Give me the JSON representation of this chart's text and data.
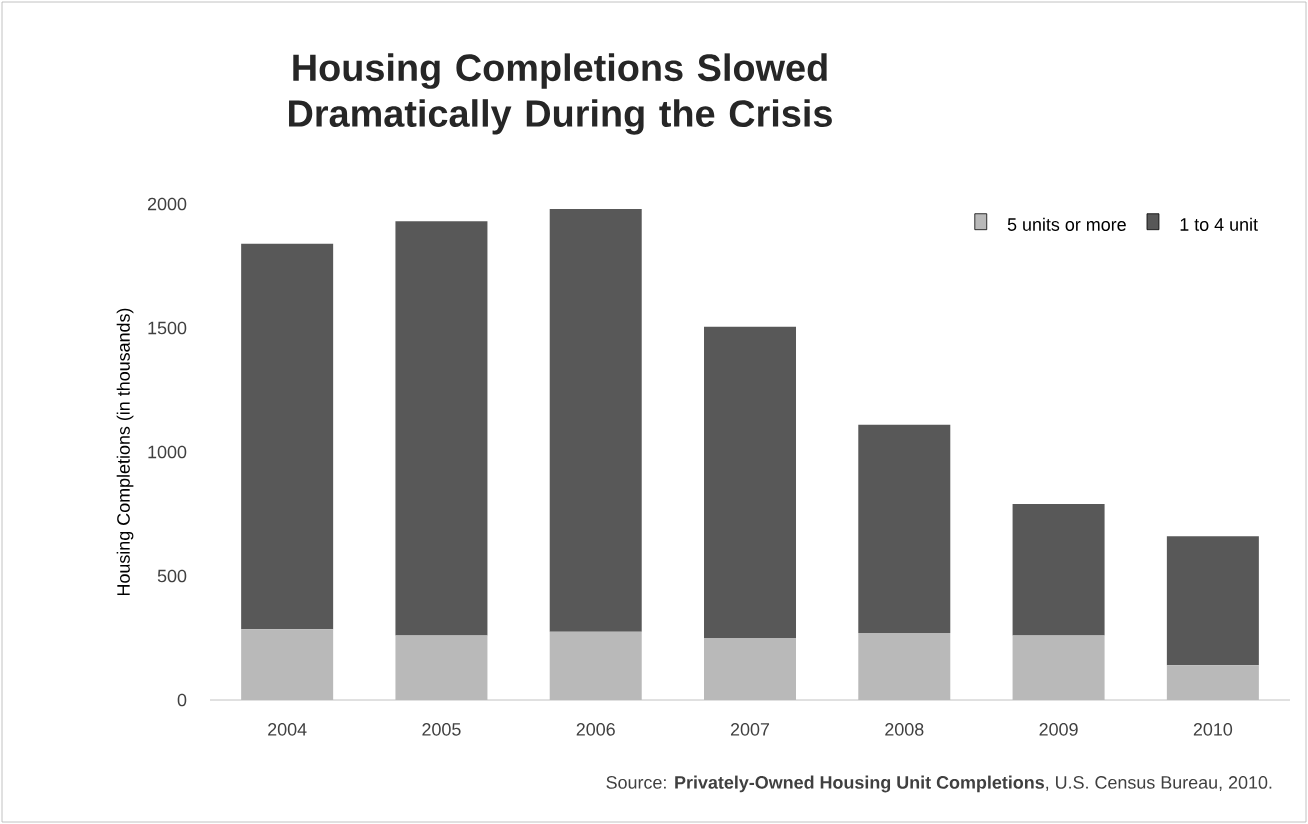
{
  "chart_data": {
    "type": "bar",
    "stacked": true,
    "title": "Housing Completions Slowed Dramatically During the Crisis",
    "ylabel": "Housing Completions (in thousands)",
    "categories": [
      "2004",
      "2005",
      "2006",
      "2007",
      "2008",
      "2009",
      "2010"
    ],
    "series": [
      {
        "name": "5 units or more",
        "color": "#b9b9b9",
        "values": [
          285,
          260,
          275,
          250,
          270,
          260,
          140
        ]
      },
      {
        "name": "1 to 4 unit",
        "color": "#585858",
        "values": [
          1555,
          1670,
          1705,
          1255,
          840,
          530,
          520
        ]
      }
    ],
    "ylim": [
      0,
      2000
    ],
    "yticks": [
      0,
      500,
      1000,
      1500,
      2000
    ],
    "legend": "top right",
    "annotations": [
      "Source: **Privately-Owned Housing Unit Completions**, U.S. Census Bureau, 2010."
    ]
  }
}
